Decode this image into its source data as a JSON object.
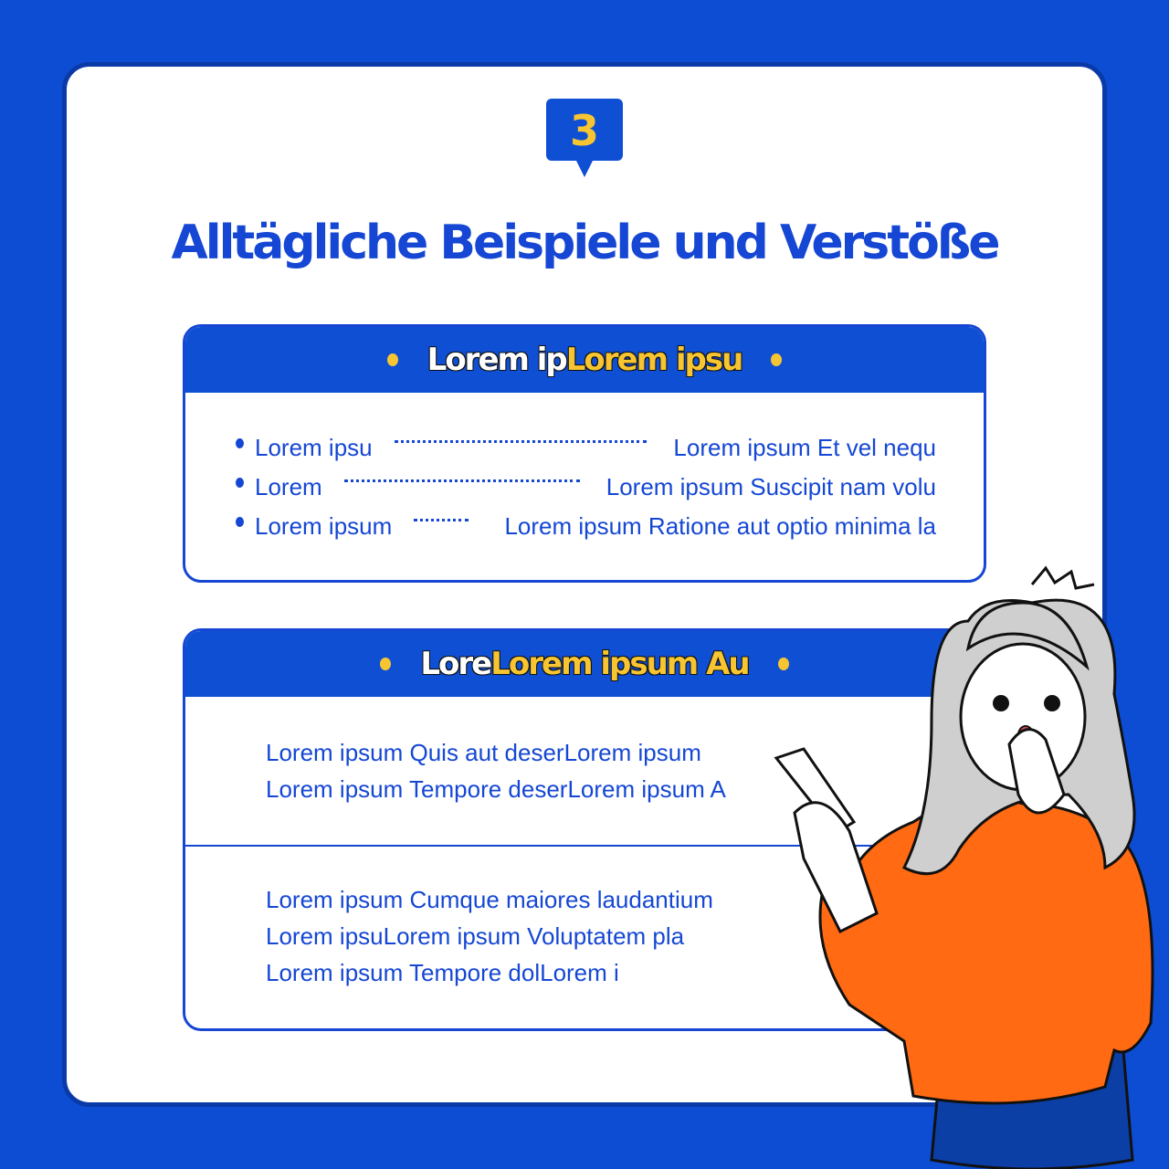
{
  "badge": "3",
  "title": "Alltägliche Beispiele und Verstöße",
  "box1": {
    "heading_white": "Lorem ip",
    "heading_yellow": "Lorem ipsu",
    "rows": [
      {
        "left": "Lorem ipsu",
        "right": "Lorem ipsum Et vel nequ"
      },
      {
        "left": "Lorem",
        "right": "Lorem ipsum Suscipit nam volu"
      },
      {
        "left": "Lorem ipsum",
        "right": "Lorem ipsum Ratione aut optio minima la"
      }
    ]
  },
  "box2": {
    "heading_white": "Lore",
    "heading_yellow": "Lorem ipsum Au",
    "para1": [
      "Lorem ipsum Quis aut deserLorem ipsum",
      "Lorem ipsum Tempore deserLorem ipsum A"
    ],
    "para2": [
      "Lorem ipsum Cumque maiores laudantium",
      "Lorem ipsuLorem ipsum Voluptatem pla",
      "Lorem ipsum Tempore dolLorem i"
    ]
  },
  "colors": {
    "background": "#0d4dd3",
    "accent": "#f7c531",
    "text": "#1547d4",
    "shirt": "#ff6a13"
  }
}
